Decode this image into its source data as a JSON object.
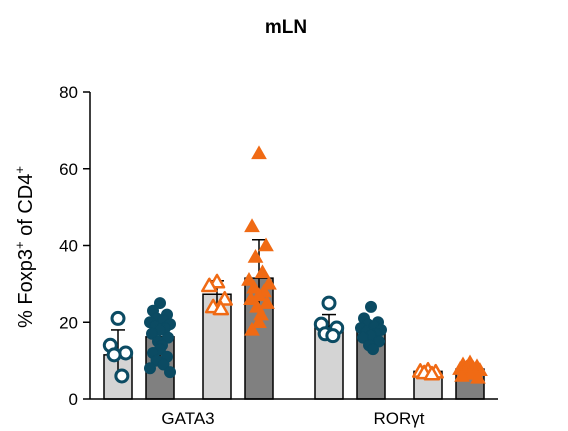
{
  "chart_data": {
    "type": "bar",
    "title": "mLN",
    "ylabel": {
      "pre": "% Foxp3",
      "sup1": "+",
      "mid": " of CD4",
      "sup2": "+"
    },
    "ylim": [
      0,
      80
    ],
    "yticks": [
      0,
      20,
      40,
      60,
      80
    ],
    "categories": [
      "GATA3",
      "RORγt"
    ],
    "grid": false,
    "bars": [
      {
        "category": "GATA3",
        "fill": "#d4d4d4",
        "mean": 11.5,
        "error": 6.5,
        "marker": "circle-open",
        "marker_color": "#0b4b63",
        "points": [
          21,
          14,
          12,
          11.5,
          6
        ]
      },
      {
        "category": "GATA3",
        "fill": "#808080",
        "mean": 16.2,
        "error": 5.5,
        "marker": "circle-filled",
        "marker_color": "#0b4b63",
        "points": [
          25,
          23,
          22,
          21,
          20.5,
          20,
          19.5,
          19,
          18.5,
          18,
          17,
          16,
          15,
          14,
          13,
          12,
          11,
          10,
          9,
          8,
          7
        ]
      },
      {
        "category": "GATA3",
        "fill": "#d4d4d4",
        "mean": 27.3,
        "error": 3.5,
        "marker": "triangle-open",
        "marker_color": "#f06a14",
        "points": [
          30.5,
          29.5,
          26,
          24,
          23.5
        ]
      },
      {
        "category": "GATA3",
        "fill": "#808080",
        "mean": 31.5,
        "error": 10,
        "marker": "triangle-filled",
        "marker_color": "#f06a14",
        "points": [
          64,
          45,
          40,
          37,
          33,
          31,
          30,
          29,
          28,
          27,
          26,
          25,
          24,
          22,
          20,
          18
        ]
      },
      {
        "category": "RORγt",
        "fill": "#d4d4d4",
        "mean": 19,
        "error": 3,
        "marker": "circle-open",
        "marker_color": "#0b4b63",
        "points": [
          25,
          19.5,
          18.5,
          17,
          16.5
        ]
      },
      {
        "category": "RORγt",
        "fill": "#808080",
        "mean": 17.8,
        "error": 2.5,
        "marker": "circle-filled",
        "marker_color": "#0b4b63",
        "points": [
          24,
          21,
          20,
          19.5,
          19,
          18.5,
          18,
          17.5,
          17,
          16.5,
          16,
          15,
          14,
          13
        ]
      },
      {
        "category": "RORγt",
        "fill": "#d4d4d4",
        "mean": 7.2,
        "error": 0.8,
        "marker": "triangle-open",
        "marker_color": "#f06a14",
        "points": [
          7.5,
          7.2,
          7,
          6.8,
          6.5
        ]
      },
      {
        "category": "RORγt",
        "fill": "#808080",
        "mean": 7.8,
        "error": 1.2,
        "marker": "triangle-filled",
        "marker_color": "#f06a14",
        "points": [
          9.5,
          9,
          8.5,
          8.2,
          8,
          7.8,
          7.5,
          7.2,
          7,
          6.5,
          6,
          5.5
        ]
      }
    ]
  }
}
